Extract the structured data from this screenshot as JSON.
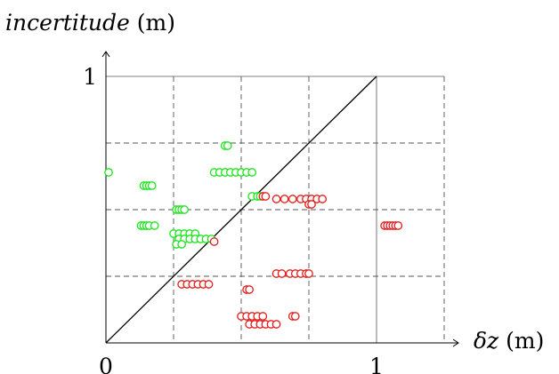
{
  "chart_data": {
    "type": "scatter",
    "title": "",
    "xlabel": "δz (m)",
    "ylabel": "incertitude (m)",
    "xlim": [
      0,
      1.25
    ],
    "ylim": [
      0,
      1.0
    ],
    "x_ticks": [
      {
        "value": 0,
        "label": "0"
      },
      {
        "value": 1,
        "label": "1"
      }
    ],
    "y_ticks": [
      {
        "value": 1,
        "label": "1"
      }
    ],
    "grid": "dashed, step 0.25 in x and y",
    "diagonal_line": [
      [
        0,
        0
      ],
      [
        1,
        1
      ]
    ],
    "series": [
      {
        "color": "#19e619",
        "points": [
          [
            0.01,
            0.64
          ],
          [
            0.14,
            0.59
          ],
          [
            0.15,
            0.59
          ],
          [
            0.16,
            0.59
          ],
          [
            0.17,
            0.59
          ],
          [
            0.13,
            0.44
          ],
          [
            0.14,
            0.44
          ],
          [
            0.15,
            0.44
          ],
          [
            0.16,
            0.44
          ],
          [
            0.18,
            0.44
          ],
          [
            0.26,
            0.5
          ],
          [
            0.27,
            0.5
          ],
          [
            0.28,
            0.5
          ],
          [
            0.29,
            0.5
          ],
          [
            0.25,
            0.41
          ],
          [
            0.27,
            0.41
          ],
          [
            0.29,
            0.41
          ],
          [
            0.31,
            0.41
          ],
          [
            0.33,
            0.41
          ],
          [
            0.27,
            0.39
          ],
          [
            0.29,
            0.39
          ],
          [
            0.31,
            0.39
          ],
          [
            0.33,
            0.39
          ],
          [
            0.35,
            0.39
          ],
          [
            0.37,
            0.39
          ],
          [
            0.39,
            0.39
          ],
          [
            0.26,
            0.37
          ],
          [
            0.28,
            0.37
          ],
          [
            0.44,
            0.74
          ],
          [
            0.45,
            0.74
          ],
          [
            0.4,
            0.64
          ],
          [
            0.42,
            0.64
          ],
          [
            0.44,
            0.64
          ],
          [
            0.46,
            0.64
          ],
          [
            0.48,
            0.64
          ],
          [
            0.5,
            0.64
          ],
          [
            0.52,
            0.64
          ],
          [
            0.54,
            0.64
          ],
          [
            0.54,
            0.55
          ],
          [
            0.56,
            0.55
          ],
          [
            0.57,
            0.55
          ]
        ]
      },
      {
        "color": "#e61919",
        "points": [
          [
            0.4,
            0.38
          ],
          [
            0.28,
            0.22
          ],
          [
            0.3,
            0.22
          ],
          [
            0.32,
            0.22
          ],
          [
            0.34,
            0.22
          ],
          [
            0.36,
            0.22
          ],
          [
            0.38,
            0.22
          ],
          [
            0.52,
            0.2
          ],
          [
            0.53,
            0.2
          ],
          [
            0.58,
            0.55
          ],
          [
            0.59,
            0.55
          ],
          [
            0.63,
            0.54
          ],
          [
            0.66,
            0.54
          ],
          [
            0.69,
            0.54
          ],
          [
            0.72,
            0.54
          ],
          [
            0.74,
            0.54
          ],
          [
            0.76,
            0.54
          ],
          [
            0.78,
            0.54
          ],
          [
            0.8,
            0.54
          ],
          [
            0.75,
            0.52
          ],
          [
            0.76,
            0.52
          ],
          [
            0.63,
            0.26
          ],
          [
            0.65,
            0.26
          ],
          [
            0.68,
            0.26
          ],
          [
            0.7,
            0.26
          ],
          [
            0.72,
            0.26
          ],
          [
            0.74,
            0.26
          ],
          [
            0.75,
            0.26
          ],
          [
            0.5,
            0.1
          ],
          [
            0.52,
            0.1
          ],
          [
            0.54,
            0.1
          ],
          [
            0.56,
            0.1
          ],
          [
            0.58,
            0.1
          ],
          [
            0.53,
            0.07
          ],
          [
            0.55,
            0.07
          ],
          [
            0.57,
            0.07
          ],
          [
            0.59,
            0.07
          ],
          [
            0.61,
            0.07
          ],
          [
            0.63,
            0.07
          ],
          [
            0.69,
            0.1
          ],
          [
            0.7,
            0.1
          ],
          [
            1.03,
            0.44
          ],
          [
            1.04,
            0.44
          ],
          [
            1.05,
            0.44
          ],
          [
            1.06,
            0.44
          ],
          [
            1.07,
            0.44
          ],
          [
            1.08,
            0.44
          ]
        ]
      }
    ]
  }
}
